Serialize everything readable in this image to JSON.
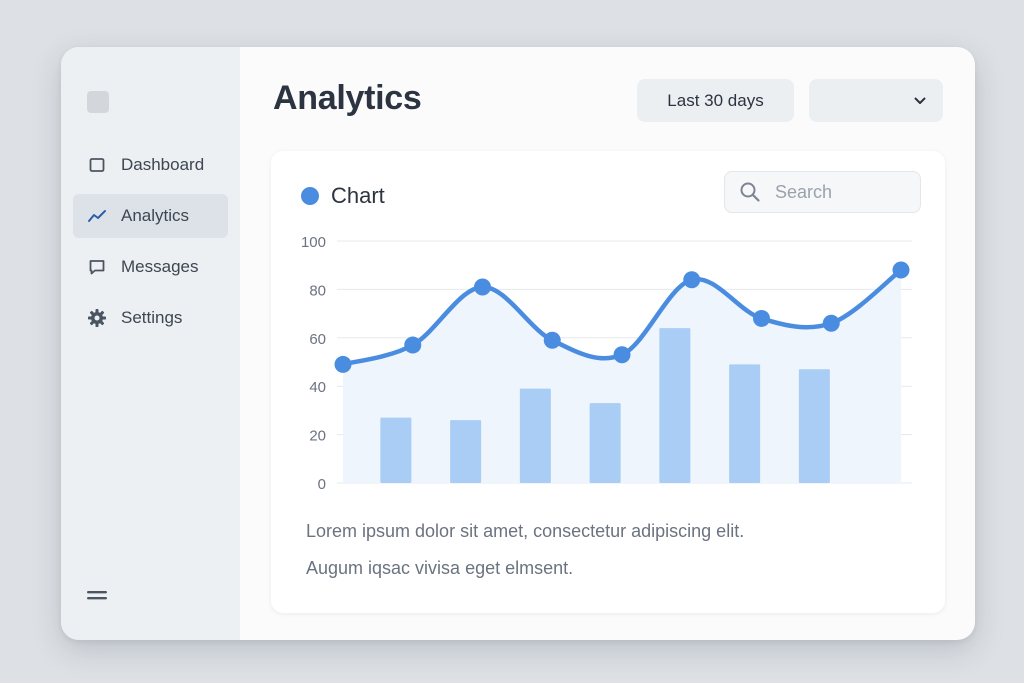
{
  "sidebar": {
    "items": [
      {
        "label": "Dashboard",
        "icon": "square-icon"
      },
      {
        "label": "Analytics",
        "icon": "trend-icon",
        "active": true
      },
      {
        "label": "Messages",
        "icon": "message-icon"
      },
      {
        "label": "Settings",
        "icon": "gear-icon"
      }
    ]
  },
  "header": {
    "title": "Analytics",
    "range_label": "Last 30 days",
    "select_value": ""
  },
  "card": {
    "title": "Chart",
    "search_placeholder": "Search",
    "description": [
      "Lorem ipsum dolor sit amet, consectetur adipiscing elit.",
      "Augum iqsac vivisa eget elmsent."
    ]
  },
  "colors": {
    "accent": "#4a8de0",
    "bar": "#a9cdf4",
    "area": "#eef5fd"
  },
  "chart_data": {
    "type": "line",
    "ylim": [
      0,
      100
    ],
    "yticks": [
      "0",
      "20",
      "40",
      "60",
      "80",
      "100"
    ],
    "grid": true,
    "series": [
      {
        "kind": "line",
        "values": [
          49,
          57,
          81,
          59,
          53,
          84,
          68,
          66,
          88
        ]
      },
      {
        "kind": "bar",
        "values": [
          27,
          26,
          39,
          33,
          64,
          49,
          47
        ]
      }
    ]
  }
}
